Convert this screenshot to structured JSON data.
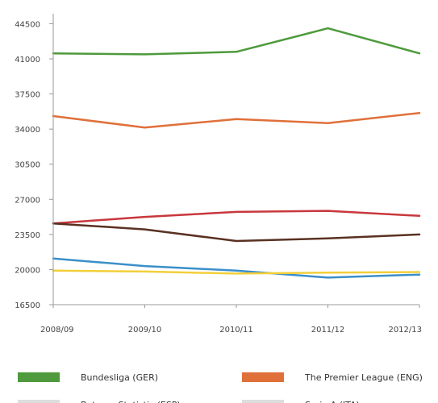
{
  "chart_data": {
    "type": "line",
    "title": "",
    "xlabel": "",
    "ylabel": "",
    "ylim": [
      16500,
      45500
    ],
    "yticks": [
      16500,
      20000,
      23500,
      27000,
      30500,
      34000,
      37500,
      41000,
      44500
    ],
    "categories": [
      "2008/09",
      "2009/10",
      "2010/11",
      "2011/12",
      "2012/13"
    ],
    "grid": false,
    "legend_position": "bottom",
    "series": [
      {
        "name": "Bundesliga (GER)",
        "color": "#4e9a3c",
        "values": [
          41550,
          41450,
          41700,
          44050,
          41550
        ]
      },
      {
        "name": "The Premier League (ENG)",
        "color": "#e0703a",
        "values": [
          35300,
          34150,
          35000,
          34600,
          35600
        ]
      },
      {
        "name": "",
        "color": "#c8383d",
        "values": [
          24600,
          25250,
          25750,
          25850,
          25350
        ]
      },
      {
        "name": "",
        "color": "#5a3122",
        "values": [
          24600,
          24000,
          22850,
          23100,
          23500
        ]
      },
      {
        "name": "",
        "color": "#3b8fc9",
        "values": [
          21100,
          20350,
          19900,
          19200,
          19500
        ]
      },
      {
        "name": "",
        "color": "#f2cf3a",
        "values": [
          19900,
          19800,
          19600,
          19700,
          19750
        ]
      }
    ]
  },
  "legend_partial": [
    {
      "text": "Batman Statistic (ESP)",
      "color": "#dddddd"
    },
    {
      "text": "Serie A (ITA)",
      "color": "#dddddd"
    }
  ]
}
